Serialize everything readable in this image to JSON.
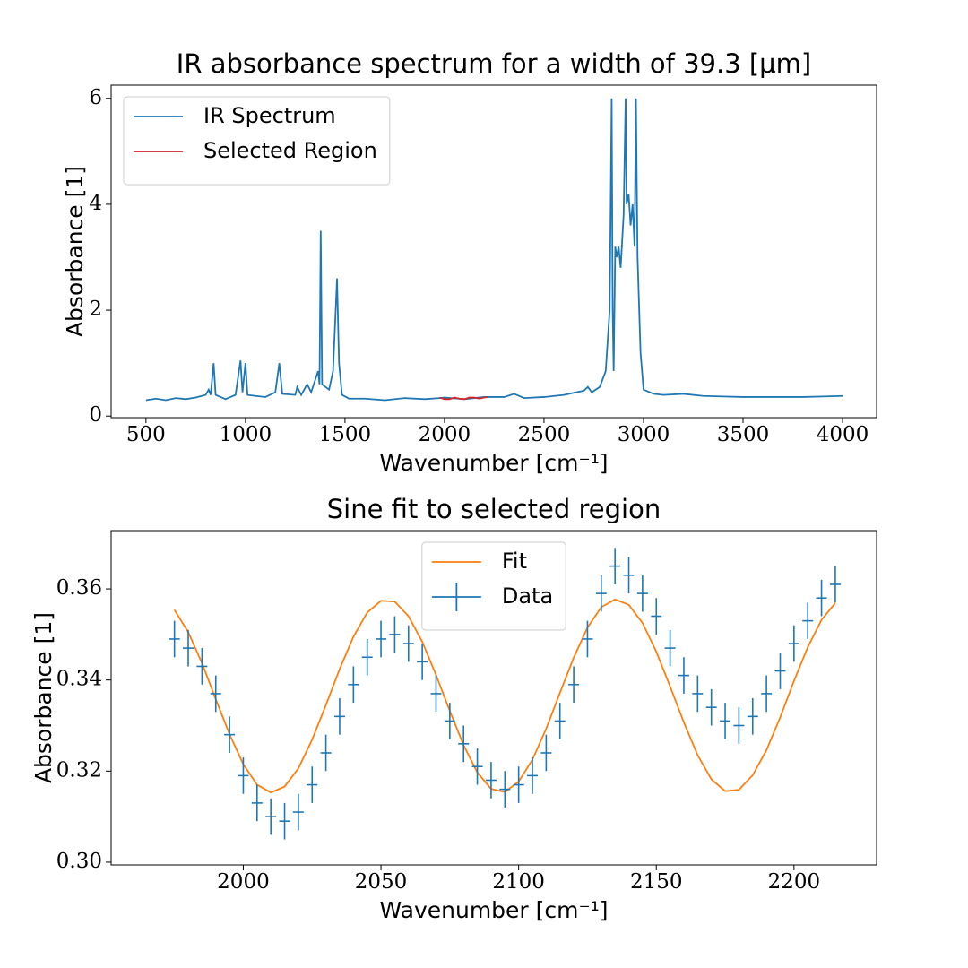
{
  "chart_data": [
    {
      "type": "line",
      "title": "IR absorbance spectrum for a width of 39.3 [μm]",
      "xlabel": "Wavenumber [cm⁻¹]",
      "ylabel": "Absorbance [1]",
      "xlim": [
        325,
        4171
      ],
      "ylim": [
        -0.03,
        6.25
      ],
      "xticks": [
        500,
        1000,
        1500,
        2000,
        2500,
        3000,
        3500,
        4000
      ],
      "yticks": [
        0,
        2,
        4,
        6
      ],
      "legend": "upper left",
      "series": [
        {
          "name": "IR Spectrum",
          "color": "#1f77b4",
          "style": "line",
          "x": [
            500,
            550,
            600,
            650,
            700,
            750,
            800,
            815,
            825,
            840,
            850,
            900,
            950,
            975,
            985,
            1000,
            1010,
            1050,
            1100,
            1150,
            1170,
            1185,
            1250,
            1260,
            1280,
            1310,
            1330,
            1365,
            1372,
            1378,
            1385,
            1420,
            1440,
            1460,
            1470,
            1485,
            1520,
            1600,
            1700,
            1800,
            1900,
            1975,
            2000,
            2100,
            2200,
            2300,
            2350,
            2400,
            2500,
            2600,
            2700,
            2720,
            2740,
            2780,
            2810,
            2830,
            2840,
            2845,
            2850,
            2858,
            2865,
            2875,
            2885,
            2900,
            2910,
            2915,
            2925,
            2935,
            2945,
            2955,
            2962,
            2970,
            2985,
            3000,
            3050,
            3100,
            3200,
            3300,
            3400,
            3500,
            3600,
            3700,
            3800,
            3900,
            4000
          ],
          "values": [
            0.3,
            0.33,
            0.3,
            0.34,
            0.32,
            0.35,
            0.4,
            0.5,
            0.4,
            1.0,
            0.4,
            0.32,
            0.4,
            1.05,
            0.45,
            1.0,
            0.4,
            0.38,
            0.36,
            0.45,
            1.0,
            0.42,
            0.4,
            0.55,
            0.4,
            0.6,
            0.45,
            0.85,
            0.6,
            3.5,
            0.6,
            0.5,
            0.85,
            2.6,
            1.0,
            0.4,
            0.33,
            0.33,
            0.3,
            0.34,
            0.32,
            0.34,
            0.35,
            0.32,
            0.36,
            0.36,
            0.42,
            0.34,
            0.36,
            0.4,
            0.48,
            0.55,
            0.45,
            0.55,
            0.85,
            2.0,
            6.0,
            2.0,
            0.85,
            3.2,
            3.0,
            3.2,
            2.8,
            3.8,
            6.0,
            4.0,
            4.2,
            3.6,
            4.0,
            3.2,
            6.0,
            3.0,
            1.2,
            0.5,
            0.42,
            0.4,
            0.42,
            0.38,
            0.37,
            0.36,
            0.36,
            0.36,
            0.36,
            0.37,
            0.38
          ]
        },
        {
          "name": "Selected Region",
          "color": "#d62728",
          "style": "line",
          "x": [
            1975,
            2000,
            2025,
            2050,
            2075,
            2100,
            2125,
            2150,
            2175,
            2200,
            2215
          ],
          "values": [
            0.35,
            0.32,
            0.32,
            0.35,
            0.33,
            0.32,
            0.35,
            0.35,
            0.33,
            0.35,
            0.36
          ]
        }
      ]
    },
    {
      "type": "line",
      "title": "Sine fit to selected region",
      "xlabel": "Wavenumber [cm⁻¹]",
      "ylabel": "Absorbance [1]",
      "xlim": [
        1952,
        2230
      ],
      "ylim": [
        0.2994,
        0.3728
      ],
      "xticks": [
        2000,
        2050,
        2100,
        2150,
        2200
      ],
      "yticks": [
        {
          "value": 0.3,
          "label": "0.30"
        },
        0.32,
        0.34,
        0.36
      ],
      "legend": "upper center",
      "series": [
        {
          "name": "Fit",
          "color": "#ff7f0e",
          "style": "line",
          "x": [
            1975,
            1980,
            1985,
            1990,
            1995,
            2000,
            2005,
            2010,
            2015,
            2020,
            2025,
            2030,
            2035,
            2040,
            2045,
            2050,
            2055,
            2060,
            2065,
            2070,
            2075,
            2080,
            2085,
            2090,
            2095,
            2100,
            2105,
            2110,
            2115,
            2120,
            2125,
            2130,
            2135,
            2140,
            2145,
            2150,
            2155,
            2160,
            2165,
            2170,
            2175,
            2180,
            2185,
            2190,
            2195,
            2200,
            2205,
            2210,
            2215
          ],
          "values": [
            0.3554,
            0.3505,
            0.3437,
            0.3358,
            0.3281,
            0.3215,
            0.317,
            0.3153,
            0.3166,
            0.3206,
            0.3269,
            0.3345,
            0.3424,
            0.3495,
            0.3548,
            0.3574,
            0.3572,
            0.354,
            0.3484,
            0.3411,
            0.3332,
            0.3257,
            0.3197,
            0.3161,
            0.3154,
            0.3177,
            0.3225,
            0.3293,
            0.3372,
            0.3449,
            0.3515,
            0.356,
            0.3577,
            0.3565,
            0.3525,
            0.3462,
            0.3386,
            0.3307,
            0.3235,
            0.3182,
            0.3156,
            0.3159,
            0.3191,
            0.3246,
            0.3318,
            0.3398,
            0.3472,
            0.3532,
            0.3569
          ]
        },
        {
          "name": "Data",
          "color": "#1f77b4",
          "style": "errorbar",
          "x": [
            1975,
            1980,
            1985,
            1990,
            1995,
            2000,
            2005,
            2010,
            2015,
            2020,
            2025,
            2030,
            2035,
            2040,
            2045,
            2050,
            2055,
            2060,
            2065,
            2070,
            2075,
            2080,
            2085,
            2090,
            2095,
            2100,
            2105,
            2110,
            2115,
            2120,
            2125,
            2130,
            2135,
            2140,
            2145,
            2150,
            2155,
            2160,
            2165,
            2170,
            2175,
            2180,
            2185,
            2190,
            2195,
            2200,
            2205,
            2210,
            2215
          ],
          "values": [
            0.349,
            0.347,
            0.343,
            0.337,
            0.328,
            0.319,
            0.313,
            0.31,
            0.309,
            0.311,
            0.317,
            0.324,
            0.332,
            0.339,
            0.345,
            0.349,
            0.35,
            0.348,
            0.344,
            0.337,
            0.331,
            0.326,
            0.321,
            0.318,
            0.316,
            0.317,
            0.319,
            0.324,
            0.331,
            0.339,
            0.349,
            0.359,
            0.365,
            0.363,
            0.359,
            0.354,
            0.347,
            0.341,
            0.337,
            0.334,
            0.331,
            0.33,
            0.332,
            0.337,
            0.342,
            0.348,
            0.353,
            0.358,
            0.361
          ],
          "errors": [
            0.004,
            0.004,
            0.004,
            0.004,
            0.004,
            0.004,
            0.004,
            0.004,
            0.004,
            0.004,
            0.004,
            0.004,
            0.004,
            0.004,
            0.004,
            0.004,
            0.004,
            0.004,
            0.004,
            0.004,
            0.004,
            0.004,
            0.004,
            0.004,
            0.004,
            0.004,
            0.004,
            0.004,
            0.004,
            0.004,
            0.004,
            0.004,
            0.004,
            0.004,
            0.004,
            0.004,
            0.004,
            0.004,
            0.004,
            0.004,
            0.004,
            0.004,
            0.004,
            0.004,
            0.004,
            0.004,
            0.004,
            0.004,
            0.004
          ]
        }
      ]
    }
  ]
}
